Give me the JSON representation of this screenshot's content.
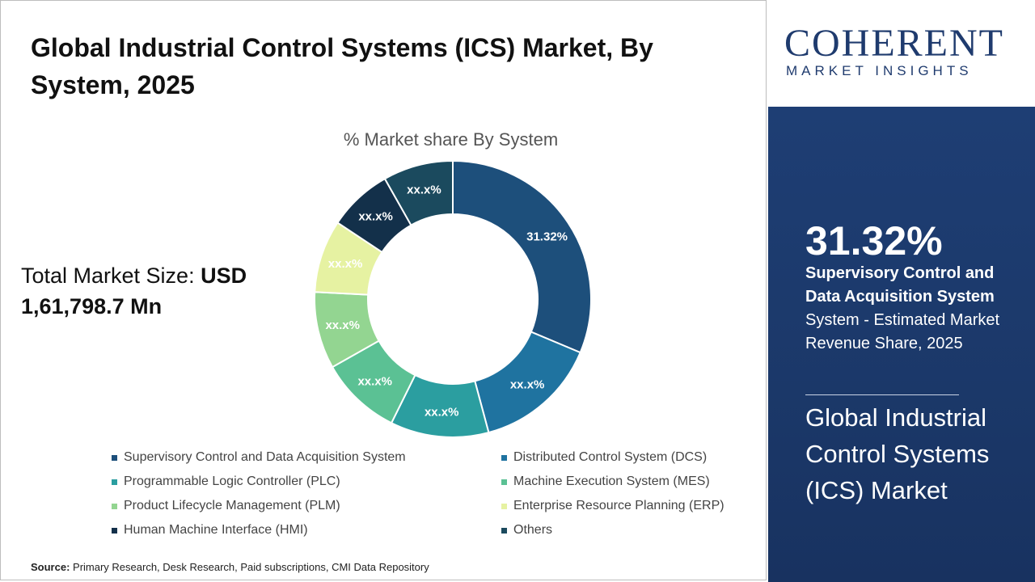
{
  "title": "Global Industrial Control Systems (ICS) Market, By System, 2025",
  "total_label": "Total Market Size: ",
  "total_value_line1": "USD",
  "total_value_line2": "1,61,798.7  Mn",
  "source_label": "Source:",
  "source_text": " Primary Research, Desk Research, Paid subscriptions, CMI Data Repository",
  "logo": {
    "main": "COHERENT",
    "sub": "MARKET INSIGHTS"
  },
  "panel": {
    "big_value": "31.32%",
    "bold_text": "Supervisory Control and Data Acquisition System",
    "desc": "System - Estimated Market Revenue Share, 2025",
    "market": "Global Industrial Control Systems (ICS) Market"
  },
  "chart_data": {
    "type": "pie",
    "title": "% Market share By System",
    "series": [
      {
        "name": "Supervisory Control and Data Acquisition System",
        "value": 31.32,
        "label": "31.32%",
        "color": "#1d4f7b"
      },
      {
        "name": "Distributed Control System (DCS)",
        "value": 14.5,
        "label": "xx.x%",
        "color": "#1f73a0"
      },
      {
        "name": "Programmable Logic Controller (PLC)",
        "value": 11.5,
        "label": "xx.x%",
        "color": "#2b9ea0"
      },
      {
        "name": "Machine Execution System (MES)",
        "value": 9.5,
        "label": "xx.x%",
        "color": "#5bc194"
      },
      {
        "name": "Product Lifecycle Management (PLM)",
        "value": 9.0,
        "label": "xx.x%",
        "color": "#93d591"
      },
      {
        "name": "Enterprise Resource Planning (ERP)",
        "value": 8.5,
        "label": "xx.x%",
        "color": "#e6f2a2"
      },
      {
        "name": "Human Machine Interface (HMI)",
        "value": 7.5,
        "label": "xx.x%",
        "color": "#13304a"
      },
      {
        "name": "Others",
        "value": 8.18,
        "label": "xx.x%",
        "color": "#1b4a5e"
      }
    ],
    "legend_position": "bottom"
  }
}
